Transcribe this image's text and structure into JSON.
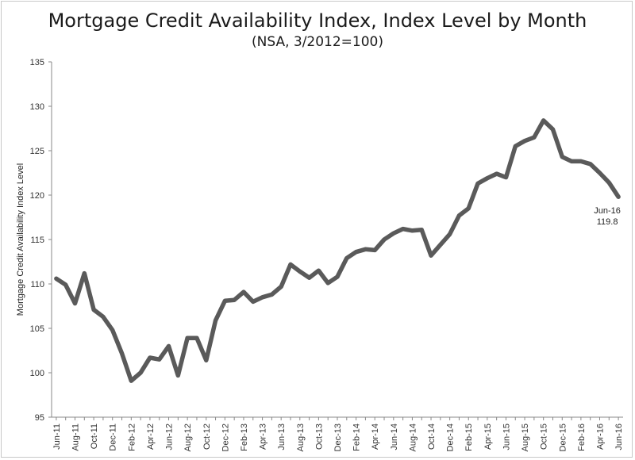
{
  "title": "Mortgage Credit Availability Index, Index Level by Month",
  "subtitle": "(NSA, 3/2012=100)",
  "colors": {
    "line": "#5a5a5a",
    "axis": "#888888"
  },
  "chart_data": {
    "type": "line",
    "title": "Mortgage Credit Availability Index, Index Level by Month",
    "subtitle": "(NSA, 3/2012=100)",
    "xlabel": "",
    "ylabel": "Mortgage Credit Availability Index Level",
    "ylim": [
      95,
      135
    ],
    "yticks": [
      95,
      100,
      105,
      110,
      115,
      120,
      125,
      130,
      135
    ],
    "grid": false,
    "x_tick_labels": [
      "Jun-11",
      "Aug-11",
      "Oct-11",
      "Dec-11",
      "Feb-12",
      "Apr-12",
      "Jun-12",
      "Aug-12",
      "Oct-12",
      "Dec-12",
      "Feb-13",
      "Apr-13",
      "Jun-13",
      "Aug-13",
      "Oct-13",
      "Dec-13",
      "Feb-14",
      "Apr-14",
      "Jun-14",
      "Aug-14",
      "Oct-14",
      "Dec-14",
      "Feb-15",
      "Apr-15",
      "Jun-15",
      "Aug-15",
      "Oct-15",
      "Dec-15",
      "Feb-16",
      "Apr-16",
      "Jun-16"
    ],
    "x": [
      "Jun-11",
      "Jul-11",
      "Aug-11",
      "Sep-11",
      "Oct-11",
      "Nov-11",
      "Dec-11",
      "Jan-12",
      "Feb-12",
      "Mar-12",
      "Apr-12",
      "May-12",
      "Jun-12",
      "Jul-12",
      "Aug-12",
      "Sep-12",
      "Oct-12",
      "Nov-12",
      "Dec-12",
      "Jan-13",
      "Feb-13",
      "Mar-13",
      "Apr-13",
      "May-13",
      "Jun-13",
      "Jul-13",
      "Aug-13",
      "Sep-13",
      "Oct-13",
      "Nov-13",
      "Dec-13",
      "Jan-14",
      "Feb-14",
      "Mar-14",
      "Apr-14",
      "May-14",
      "Jun-14",
      "Jul-14",
      "Aug-14",
      "Sep-14",
      "Oct-14",
      "Nov-14",
      "Dec-14",
      "Jan-15",
      "Feb-15",
      "Mar-15",
      "Apr-15",
      "May-15",
      "Jun-15",
      "Jul-15",
      "Aug-15",
      "Sep-15",
      "Oct-15",
      "Nov-15",
      "Dec-15",
      "Jan-16",
      "Feb-16",
      "Mar-16",
      "Apr-16",
      "May-16",
      "Jun-16"
    ],
    "series": [
      {
        "values": [
          110.6,
          109.9,
          107.8,
          111.2,
          107.1,
          106.3,
          104.8,
          102.2,
          99.1,
          100.0,
          101.7,
          101.5,
          103.0,
          99.7,
          103.9,
          103.9,
          101.4,
          105.9,
          108.1,
          108.2,
          109.1,
          108.0,
          108.5,
          108.8,
          109.7,
          112.2,
          111.4,
          110.7,
          111.5,
          110.1,
          110.8,
          112.9,
          113.6,
          113.9,
          113.8,
          115.0,
          115.7,
          116.2,
          116.0,
          116.1,
          113.2,
          114.4,
          115.6,
          117.7,
          118.5,
          121.3,
          121.9,
          122.4,
          122.0,
          125.5,
          126.1,
          126.5,
          128.4,
          127.4,
          124.3,
          123.8,
          123.8,
          123.5,
          122.5,
          121.4,
          119.8
        ]
      }
    ],
    "annotation": {
      "label": "Jun-16",
      "value": "119.8"
    }
  }
}
